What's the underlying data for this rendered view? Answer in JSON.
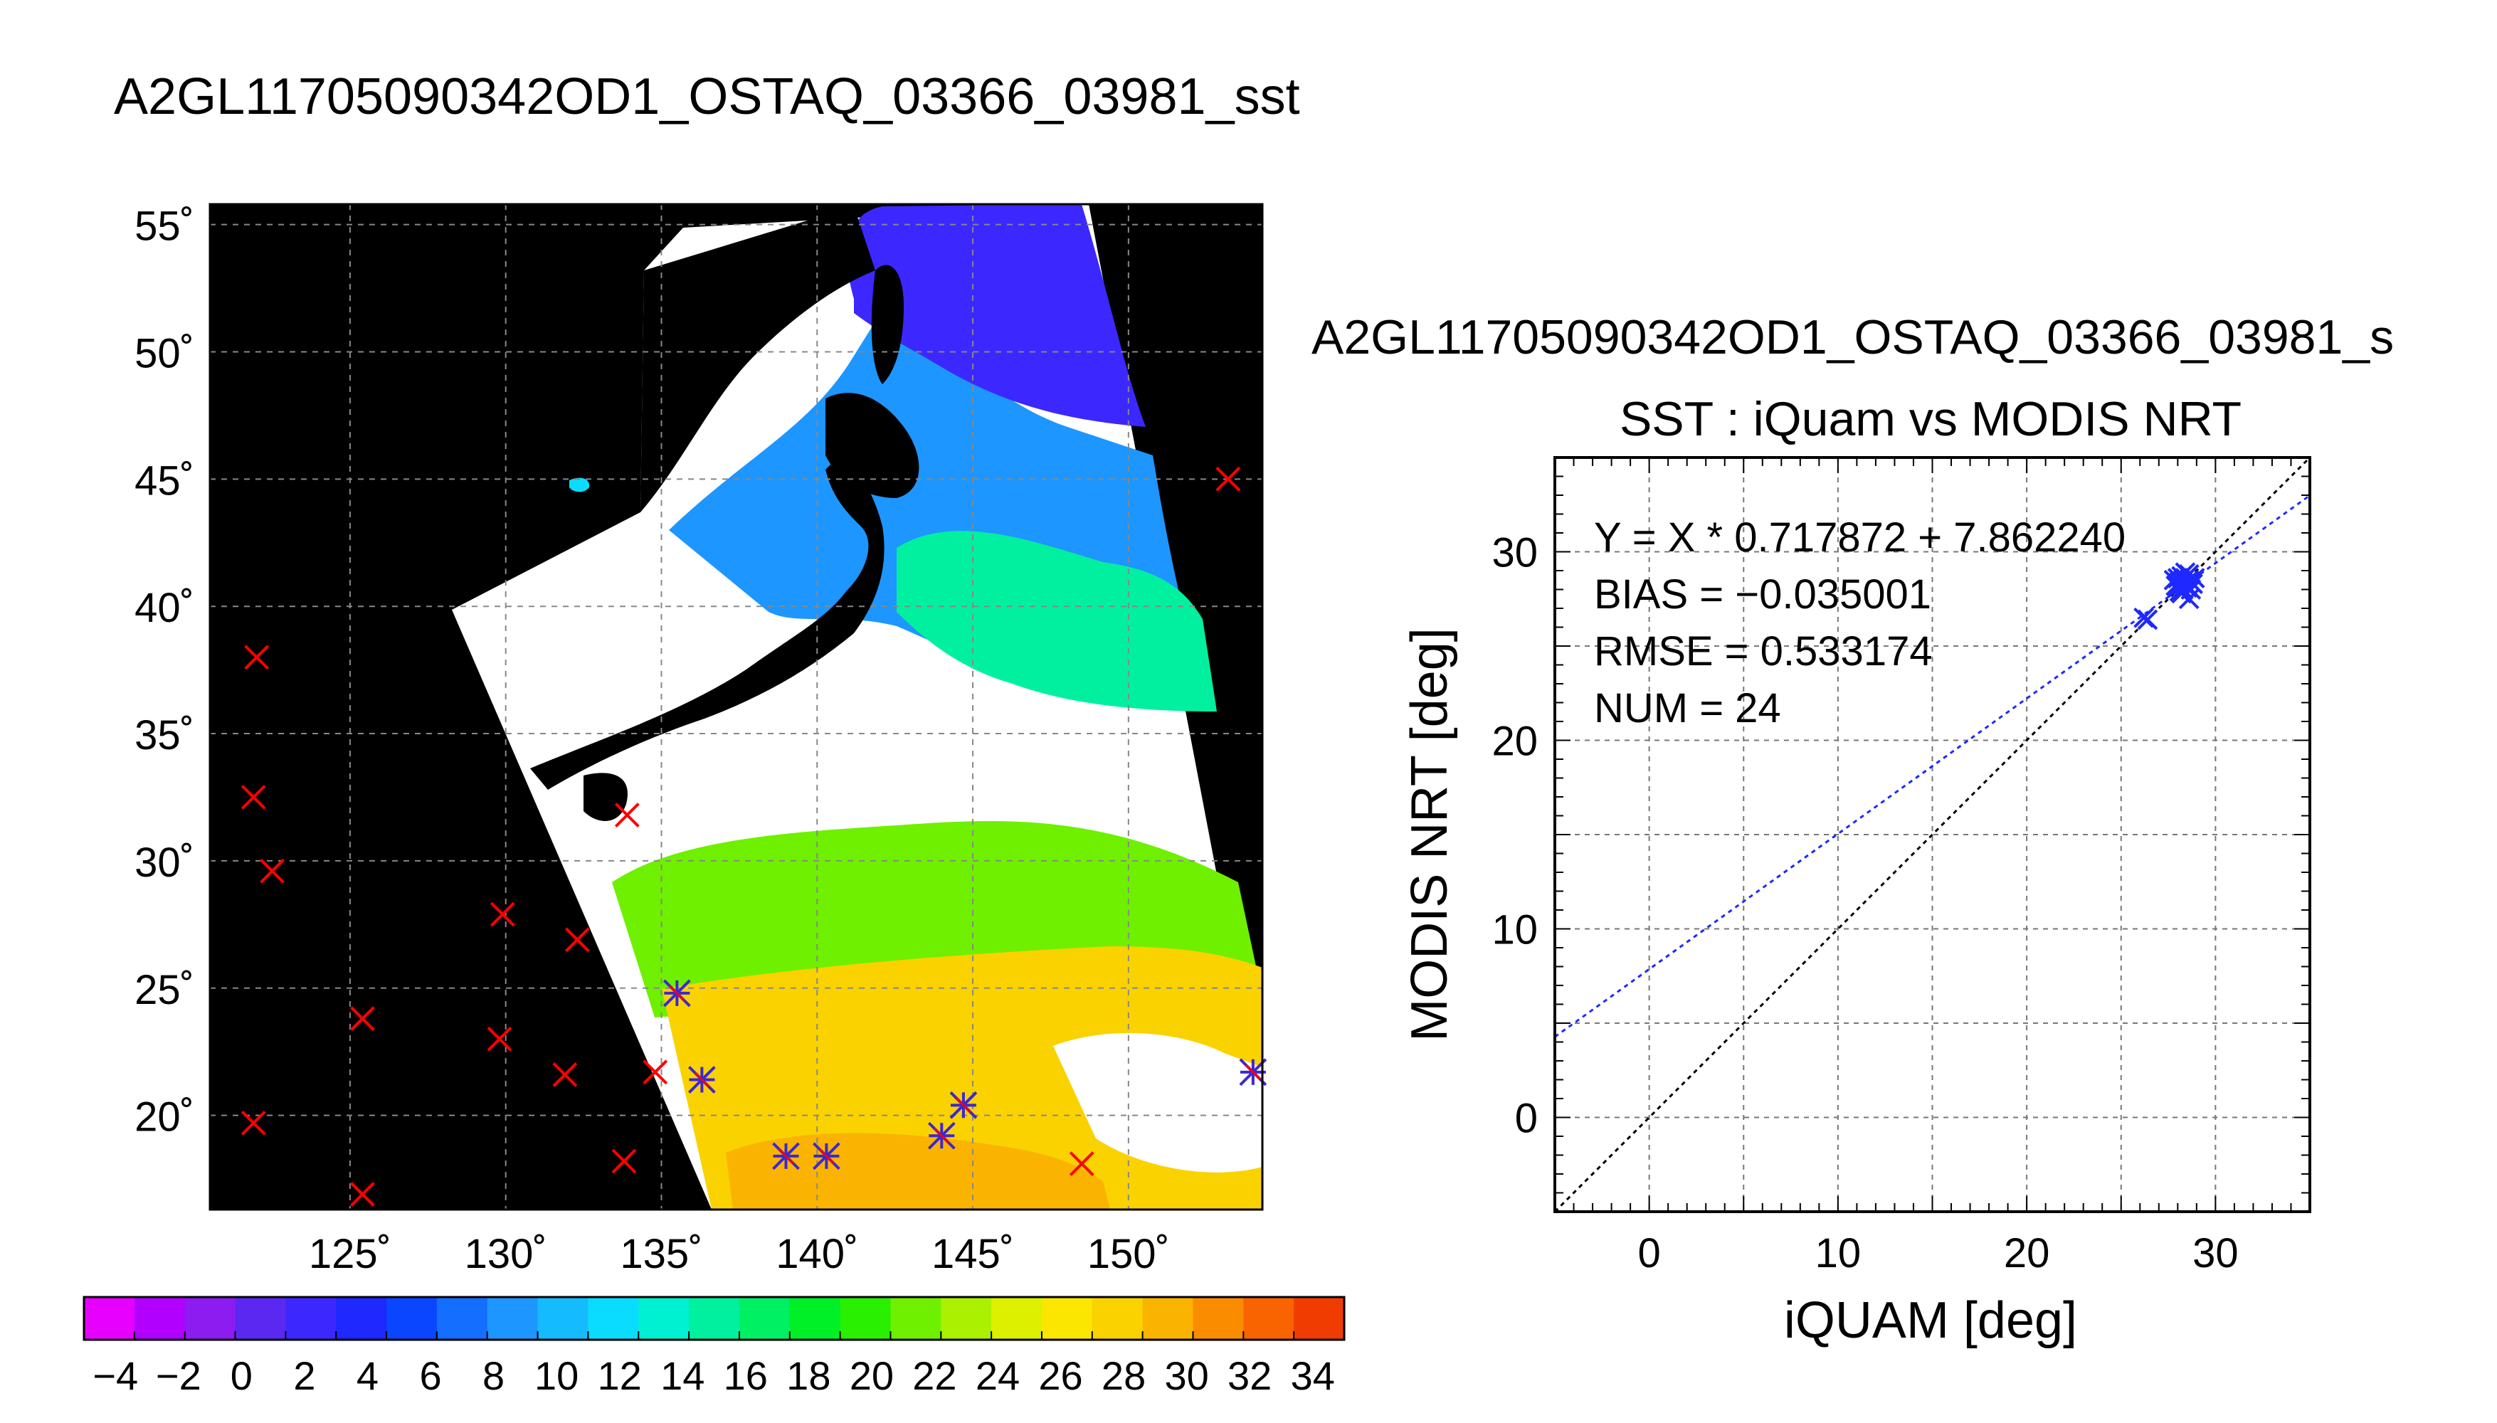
{
  "main_title": "A2GL11705090342OD1_OSTAQ_03366_03981_sst",
  "map": {
    "lat_ticks": [
      "55˚",
      "50˚",
      "45˚",
      "40˚",
      "35˚",
      "30˚",
      "25˚",
      "20˚"
    ],
    "lon_ticks": [
      "125˚",
      "130˚",
      "135˚",
      "140˚",
      "145˚",
      "150˚"
    ],
    "lat_values": [
      55,
      50,
      45,
      40,
      35,
      30,
      25,
      20
    ],
    "lon_values": [
      125,
      130,
      135,
      140,
      145,
      150
    ],
    "lon_range": [
      120.5,
      154.3
    ],
    "lat_range": [
      16.3,
      55.8
    ],
    "colorbar_labels": [
      "−4",
      "−2",
      "0",
      "2",
      "4",
      "6",
      "8",
      "10",
      "12",
      "14",
      "16",
      "18",
      "20",
      "22",
      "24",
      "26",
      "28",
      "30",
      "32",
      "34"
    ],
    "colorbar_range": [
      -5,
      35
    ],
    "colorbar_colors": [
      "#e800ff",
      "#b200ff",
      "#8c1cf0",
      "#5a28f0",
      "#3c28ff",
      "#1e28ff",
      "#0a46ff",
      "#146eff",
      "#1e96ff",
      "#14bcff",
      "#0adcff",
      "#00f0d2",
      "#00f0a0",
      "#00f064",
      "#00f028",
      "#28f000",
      "#6ef000",
      "#aaf000",
      "#dcf000",
      "#fae600",
      "#fad200",
      "#fab400",
      "#fa8c00",
      "#fa6400",
      "#f03c00"
    ],
    "observation_colors": {
      "not_matched": "#ff0000",
      "matched": "#3c28d2"
    },
    "observations_not_matched": [
      {
        "lon": 153.2,
        "lat": 45.0
      },
      {
        "lon": 122.0,
        "lat": 38.0
      },
      {
        "lon": 121.9,
        "lat": 32.5
      },
      {
        "lon": 122.5,
        "lat": 29.6
      },
      {
        "lon": 133.9,
        "lat": 31.8
      },
      {
        "lon": 129.9,
        "lat": 27.9
      },
      {
        "lon": 132.3,
        "lat": 26.9
      },
      {
        "lon": 125.4,
        "lat": 23.8
      },
      {
        "lon": 129.8,
        "lat": 23.0
      },
      {
        "lon": 131.9,
        "lat": 21.6
      },
      {
        "lon": 134.8,
        "lat": 21.7
      },
      {
        "lon": 121.9,
        "lat": 19.7
      },
      {
        "lon": 125.4,
        "lat": 16.9
      },
      {
        "lon": 133.8,
        "lat": 18.2
      },
      {
        "lon": 148.5,
        "lat": 18.1
      }
    ],
    "observations_matched": [
      {
        "lon": 135.5,
        "lat": 24.8
      },
      {
        "lon": 136.3,
        "lat": 21.4
      },
      {
        "lon": 139.0,
        "lat": 18.4
      },
      {
        "lon": 140.3,
        "lat": 18.4
      },
      {
        "lon": 144.0,
        "lat": 19.2
      },
      {
        "lon": 144.7,
        "lat": 20.4
      },
      {
        "lon": 154.0,
        "lat": 21.7
      }
    ]
  },
  "chart_data": {
    "type": "scatter",
    "title_line1": "A2GL11705090342OD1_OSTAQ_03366_03981_s",
    "title": "SST : iQuam vs MODIS NRT",
    "xlabel": "iQUAM [deg]",
    "ylabel": "MODIS NRT [deg]",
    "xlim": [
      -5,
      35
    ],
    "ylim": [
      -5,
      35
    ],
    "xticks": [
      0,
      10,
      20,
      30
    ],
    "yticks": [
      0,
      10,
      20,
      30
    ],
    "grid": true,
    "annotations": [
      "Y = X * 0.717872 + 7.862240",
      "BIAS = −0.035001",
      "RMSE = 0.533174",
      "NUM = 24"
    ],
    "fit": {
      "slope": 0.717872,
      "intercept": 7.86224,
      "color": "#1e28ff"
    },
    "identity_line": {
      "color": "#000000"
    },
    "point_color": "#1e28ff",
    "points": [
      [
        26.2,
        26.5
      ],
      [
        26.4,
        26.4
      ],
      [
        27.8,
        28.5
      ],
      [
        28.0,
        28.6
      ],
      [
        28.1,
        28.4
      ],
      [
        28.2,
        28.7
      ],
      [
        28.3,
        28.3
      ],
      [
        28.4,
        28.6
      ],
      [
        28.5,
        28.2
      ],
      [
        28.6,
        28.5
      ],
      [
        28.7,
        28.4
      ],
      [
        28.5,
        28.1
      ],
      [
        28.3,
        28.0
      ],
      [
        28.6,
        27.5
      ],
      [
        28.2,
        27.8
      ],
      [
        27.9,
        28.2
      ],
      [
        28.1,
        27.9
      ],
      [
        28.8,
        28.3
      ],
      [
        28.4,
        28.9
      ],
      [
        28.0,
        28.1
      ],
      [
        28.6,
        28.8
      ],
      [
        28.3,
        28.5
      ],
      [
        28.9,
        28.6
      ],
      [
        28.7,
        28.0
      ]
    ]
  }
}
